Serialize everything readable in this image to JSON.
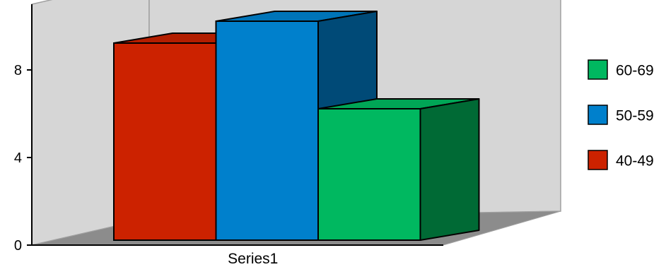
{
  "chart_data": {
    "type": "bar",
    "style": "3d-clustered-column",
    "categories": [
      "Series1"
    ],
    "series": [
      {
        "name": "40-49",
        "values": [
          9
        ],
        "color": "#cc2200",
        "side_color": "#8a1500",
        "top_color": "#b31e00"
      },
      {
        "name": "50-59",
        "values": [
          10
        ],
        "color": "#0080cc",
        "side_color": "#004a77",
        "top_color": "#0074b8"
      },
      {
        "name": "60-69",
        "values": [
          6
        ],
        "color": "#00b860",
        "side_color": "#006a35",
        "top_color": "#00a656"
      }
    ],
    "yticks": [
      0,
      4,
      8
    ],
    "ylim": [
      0,
      11
    ],
    "grid": false,
    "legend_position": "right",
    "legend_order": [
      "60-69",
      "50-59",
      "40-49"
    ],
    "colors": {
      "wall": "#d6d6d6",
      "floor": "#8c8c8c",
      "edge": "#000000"
    }
  }
}
